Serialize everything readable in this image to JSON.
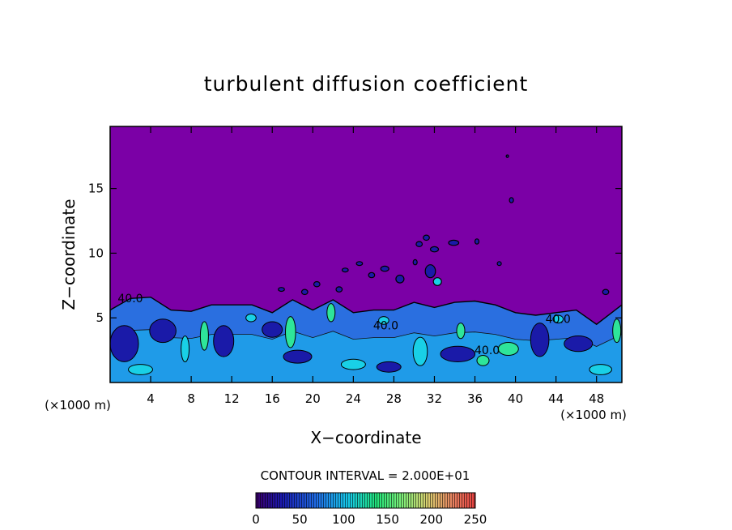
{
  "chart_data": {
    "type": "heatmap",
    "title": "turbulent diffusion coefficient",
    "xlabel": "X−coordinate",
    "ylabel": "Z−coordinate",
    "x_unit_left": "(×1000 m)",
    "x_unit_right": "(×1000 m)",
    "xlim": [
      0,
      50.5
    ],
    "ylim": [
      0,
      19.8
    ],
    "xticks": [
      4,
      8,
      12,
      16,
      20,
      24,
      28,
      32,
      36,
      40,
      44,
      48
    ],
    "yticks": [
      5,
      10,
      15
    ],
    "contour_interval_text": "CONTOUR INTERVAL = 2.000E+01",
    "contour_labels": [
      {
        "text": "40.0",
        "x": 2.0,
        "z": 6.2
      },
      {
        "text": "40.0",
        "x": 27.2,
        "z": 4.1
      },
      {
        "text": "40.0",
        "x": 37.2,
        "z": 2.2
      },
      {
        "text": "40.0",
        "x": 44.2,
        "z": 4.6
      }
    ],
    "colorbar": {
      "min": 0,
      "max": 250,
      "ticks": [
        0,
        50,
        100,
        150,
        200,
        250
      ]
    },
    "background_color": "#7b00a6",
    "turbulent_layer_top": [
      {
        "x": 0,
        "z": 5.6
      },
      {
        "x": 2,
        "z": 6.5
      },
      {
        "x": 4,
        "z": 6.6
      },
      {
        "x": 6,
        "z": 5.6
      },
      {
        "x": 8,
        "z": 5.5
      },
      {
        "x": 10,
        "z": 6.0
      },
      {
        "x": 12,
        "z": 6.0
      },
      {
        "x": 14,
        "z": 6.0
      },
      {
        "x": 16,
        "z": 5.4
      },
      {
        "x": 18,
        "z": 6.4
      },
      {
        "x": 20,
        "z": 5.6
      },
      {
        "x": 22,
        "z": 6.4
      },
      {
        "x": 24,
        "z": 5.4
      },
      {
        "x": 26,
        "z": 5.6
      },
      {
        "x": 28,
        "z": 5.6
      },
      {
        "x": 30,
        "z": 6.2
      },
      {
        "x": 32,
        "z": 5.8
      },
      {
        "x": 34,
        "z": 6.2
      },
      {
        "x": 36,
        "z": 6.3
      },
      {
        "x": 38,
        "z": 6.0
      },
      {
        "x": 40,
        "z": 5.4
      },
      {
        "x": 42,
        "z": 5.2
      },
      {
        "x": 44,
        "z": 5.4
      },
      {
        "x": 46,
        "z": 5.6
      },
      {
        "x": 48,
        "z": 4.5
      },
      {
        "x": 50.5,
        "z": 6.0
      }
    ],
    "features": [
      {
        "type": "core",
        "x": 1.4,
        "z": 3.0,
        "rx": 1.4,
        "rz": 1.4,
        "level": "low"
      },
      {
        "type": "core",
        "x": 5.2,
        "z": 4.0,
        "rx": 1.3,
        "rz": 0.9,
        "level": "low"
      },
      {
        "type": "core",
        "x": 11.2,
        "z": 3.2,
        "rx": 1.0,
        "rz": 1.2,
        "level": "low"
      },
      {
        "type": "core",
        "x": 18.5,
        "z": 2.0,
        "rx": 1.4,
        "rz": 0.5,
        "level": "low"
      },
      {
        "type": "core",
        "x": 34.3,
        "z": 2.2,
        "rx": 1.7,
        "rz": 0.6,
        "level": "low"
      },
      {
        "type": "core",
        "x": 46.2,
        "z": 3.0,
        "rx": 1.4,
        "rz": 0.6,
        "level": "low"
      },
      {
        "type": "core",
        "x": 42.4,
        "z": 3.3,
        "rx": 0.9,
        "rz": 1.3,
        "level": "low"
      },
      {
        "type": "core",
        "x": 16.0,
        "z": 4.1,
        "rx": 1.0,
        "rz": 0.6,
        "level": "low"
      },
      {
        "type": "core",
        "x": 27.5,
        "z": 1.2,
        "rx": 1.2,
        "rz": 0.4,
        "level": "low"
      },
      {
        "type": "patch",
        "x": 9.3,
        "z": 3.6,
        "rx": 0.4,
        "rz": 1.1,
        "level": "high"
      },
      {
        "type": "patch",
        "x": 17.8,
        "z": 3.9,
        "rx": 0.5,
        "rz": 1.2,
        "level": "high"
      },
      {
        "type": "patch",
        "x": 21.8,
        "z": 5.4,
        "rx": 0.4,
        "rz": 0.7,
        "level": "high"
      },
      {
        "type": "patch",
        "x": 39.3,
        "z": 2.6,
        "rx": 1.0,
        "rz": 0.5,
        "level": "high"
      },
      {
        "type": "patch",
        "x": 50.0,
        "z": 4.0,
        "rx": 0.4,
        "rz": 0.9,
        "level": "high"
      },
      {
        "type": "patch",
        "x": 34.6,
        "z": 4.0,
        "rx": 0.4,
        "rz": 0.6,
        "level": "high"
      },
      {
        "type": "patch",
        "x": 36.8,
        "z": 1.7,
        "rx": 0.6,
        "rz": 0.4,
        "level": "high"
      },
      {
        "type": "patch",
        "x": 27.0,
        "z": 4.8,
        "rx": 0.5,
        "rz": 0.3,
        "level": "mid"
      },
      {
        "type": "patch",
        "x": 13.9,
        "z": 5.0,
        "rx": 0.5,
        "rz": 0.3,
        "level": "mid"
      },
      {
        "type": "patch",
        "x": 3.0,
        "z": 1.0,
        "rx": 1.2,
        "rz": 0.4,
        "level": "mid"
      },
      {
        "type": "patch",
        "x": 24.0,
        "z": 1.4,
        "rx": 1.2,
        "rz": 0.4,
        "level": "mid"
      },
      {
        "type": "patch",
        "x": 30.6,
        "z": 2.4,
        "rx": 0.7,
        "rz": 1.1,
        "level": "mid"
      },
      {
        "type": "patch",
        "x": 44.2,
        "z": 4.9,
        "rx": 0.5,
        "rz": 0.3,
        "level": "mid"
      },
      {
        "type": "patch",
        "x": 48.4,
        "z": 1.0,
        "rx": 1.1,
        "rz": 0.4,
        "level": "mid"
      },
      {
        "type": "patch",
        "x": 7.4,
        "z": 2.6,
        "rx": 0.4,
        "rz": 1.0,
        "level": "mid"
      },
      {
        "type": "blob",
        "x": 19.2,
        "z": 7.0,
        "rx": 0.3,
        "rz": 0.2,
        "level": "low"
      },
      {
        "type": "blob",
        "x": 20.4,
        "z": 7.6,
        "rx": 0.3,
        "rz": 0.2,
        "level": "low"
      },
      {
        "type": "blob",
        "x": 22.6,
        "z": 7.2,
        "rx": 0.3,
        "rz": 0.2,
        "level": "low"
      },
      {
        "type": "blob",
        "x": 23.2,
        "z": 8.7,
        "rx": 0.3,
        "rz": 0.15,
        "level": "low"
      },
      {
        "type": "blob",
        "x": 24.6,
        "z": 9.2,
        "rx": 0.3,
        "rz": 0.15,
        "level": "low"
      },
      {
        "type": "blob",
        "x": 25.8,
        "z": 8.3,
        "rx": 0.3,
        "rz": 0.2,
        "level": "low"
      },
      {
        "type": "blob",
        "x": 27.1,
        "z": 8.8,
        "rx": 0.4,
        "rz": 0.2,
        "level": "low"
      },
      {
        "type": "blob",
        "x": 28.6,
        "z": 8.0,
        "rx": 0.4,
        "rz": 0.3,
        "level": "low"
      },
      {
        "type": "blob",
        "x": 30.5,
        "z": 10.7,
        "rx": 0.3,
        "rz": 0.2,
        "level": "low"
      },
      {
        "type": "blob",
        "x": 31.2,
        "z": 11.2,
        "rx": 0.3,
        "rz": 0.2,
        "level": "low"
      },
      {
        "type": "blob",
        "x": 32.0,
        "z": 10.3,
        "rx": 0.4,
        "rz": 0.2,
        "level": "low"
      },
      {
        "type": "blob",
        "x": 33.9,
        "z": 10.8,
        "rx": 0.5,
        "rz": 0.2,
        "level": "low"
      },
      {
        "type": "blob",
        "x": 31.6,
        "z": 8.6,
        "rx": 0.5,
        "rz": 0.5,
        "level": "low"
      },
      {
        "type": "blob",
        "x": 32.3,
        "z": 7.8,
        "rx": 0.4,
        "rz": 0.3,
        "level": "mid"
      },
      {
        "type": "blob",
        "x": 30.1,
        "z": 9.3,
        "rx": 0.2,
        "rz": 0.2,
        "level": "low"
      },
      {
        "type": "blob",
        "x": 36.2,
        "z": 10.9,
        "rx": 0.2,
        "rz": 0.2,
        "level": "low"
      },
      {
        "type": "blob",
        "x": 39.2,
        "z": 17.5,
        "rx": 0.1,
        "rz": 0.1,
        "level": "low"
      },
      {
        "type": "blob",
        "x": 39.6,
        "z": 14.1,
        "rx": 0.2,
        "rz": 0.2,
        "level": "low"
      },
      {
        "type": "blob",
        "x": 16.9,
        "z": 7.2,
        "rx": 0.3,
        "rz": 0.15,
        "level": "low"
      },
      {
        "type": "blob",
        "x": 38.4,
        "z": 9.2,
        "rx": 0.2,
        "rz": 0.15,
        "level": "low"
      },
      {
        "type": "blob",
        "x": 48.9,
        "z": 7.0,
        "rx": 0.3,
        "rz": 0.2,
        "level": "low"
      }
    ]
  }
}
